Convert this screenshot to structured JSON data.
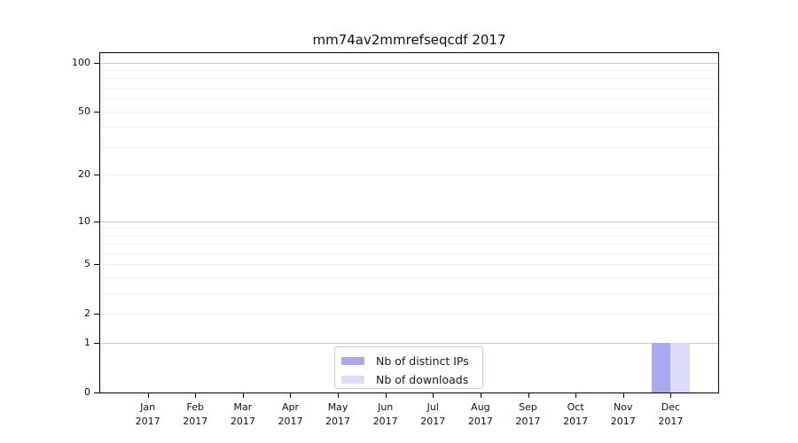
{
  "page": {
    "background": "#ffffff"
  },
  "chart_data": {
    "type": "bar",
    "title": "mm74av2mmrefseqcdf 2017",
    "categories": [
      "Jan 2017",
      "Feb 2017",
      "Mar 2017",
      "Apr 2017",
      "May 2017",
      "Jun 2017",
      "Jul 2017",
      "Aug 2017",
      "Sep 2017",
      "Oct 2017",
      "Nov 2017",
      "Dec 2017"
    ],
    "series": [
      {
        "name": "Nb of distinct IPs",
        "color": "#a9a9f2",
        "values": [
          0,
          0,
          0,
          0,
          0,
          0,
          0,
          0,
          0,
          0,
          0,
          1
        ]
      },
      {
        "name": "Nb of downloads",
        "color": "#dcdcf8",
        "values": [
          0,
          0,
          0,
          0,
          0,
          0,
          0,
          0,
          0,
          0,
          0,
          1
        ]
      }
    ],
    "xlabel": "",
    "ylabel": "",
    "yscale": "log1p",
    "ylim": [
      0,
      100
    ],
    "y_tick_labels": [
      0,
      1,
      2,
      5,
      10,
      20,
      50,
      100
    ],
    "y_major_gridlines": [
      1,
      10,
      100
    ],
    "y_minor_gridlines": [
      2,
      3,
      4,
      5,
      6,
      7,
      8,
      9,
      20,
      30,
      40,
      50,
      60,
      70,
      80,
      90
    ],
    "grid": "horizontal",
    "legend_position": "inside-bottom-center",
    "colors": {
      "axis": "#000000",
      "grid_major": "#c9c9c9",
      "grid_minor": "#f0f0f0",
      "legend_border": "#cccccc",
      "background": "#ffffff"
    }
  }
}
